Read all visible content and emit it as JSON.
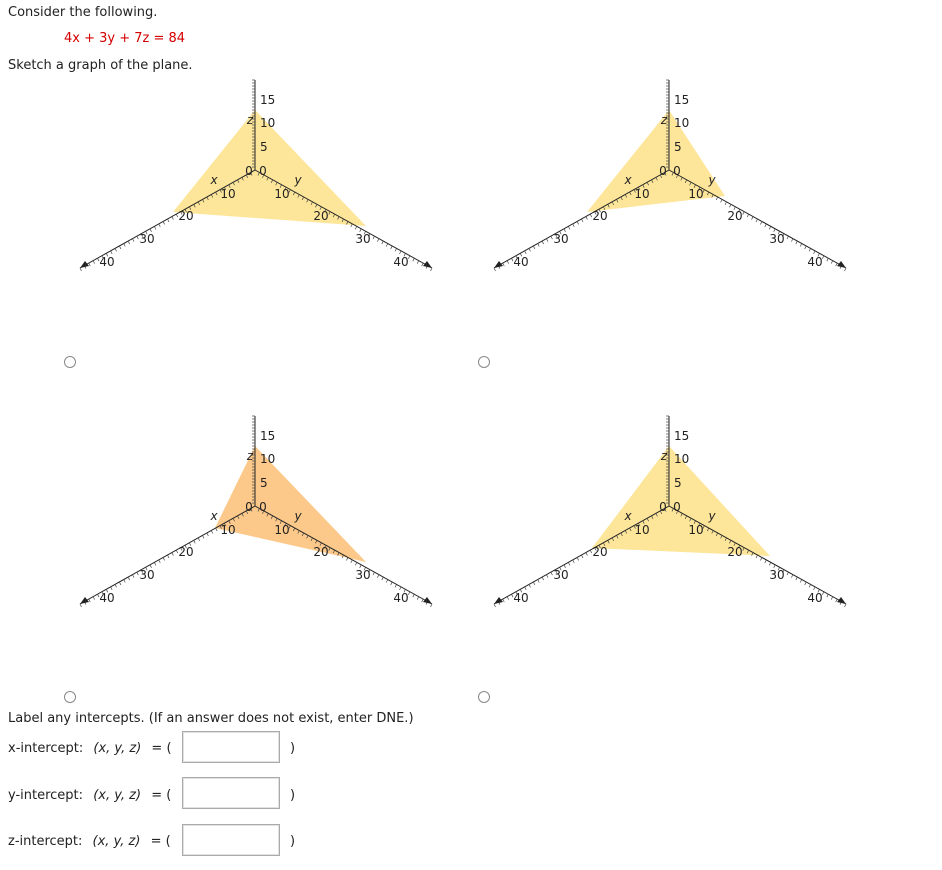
{
  "question": {
    "intro": "Consider the following.",
    "equation": "4x + 3y + 7z = 84",
    "instruction": "Sketch a graph of the plane."
  },
  "graphs": [
    {
      "id": "A",
      "fill": "#fde69a",
      "z_ticks": [
        "15",
        "10",
        "5"
      ],
      "origin_labels": [
        "0",
        "0"
      ],
      "x_ticks": [
        "10",
        "20",
        "30",
        "40"
      ],
      "y_ticks": [
        "10",
        "20",
        "30",
        "40"
      ],
      "axis_letters": {
        "x": "x",
        "y": "y",
        "z": "z"
      }
    },
    {
      "id": "B",
      "fill": "#fde69a",
      "z_ticks": [
        "15",
        "10",
        "5"
      ],
      "origin_labels": [
        "0",
        "0"
      ],
      "x_ticks": [
        "10",
        "20",
        "30",
        "40"
      ],
      "y_ticks": [
        "10",
        "20",
        "30",
        "40"
      ],
      "axis_letters": {
        "x": "x",
        "y": "y",
        "z": "z"
      }
    },
    {
      "id": "C",
      "fill": "#fcc98a",
      "z_ticks": [
        "15",
        "10",
        "5"
      ],
      "origin_labels": [
        "0",
        "0"
      ],
      "x_ticks": [
        "10",
        "20",
        "30",
        "40"
      ],
      "y_ticks": [
        "10",
        "20",
        "30",
        "40"
      ],
      "axis_letters": {
        "x": "x",
        "y": "y",
        "z": "z"
      }
    },
    {
      "id": "D",
      "fill": "#fde69a",
      "z_ticks": [
        "15",
        "10",
        "5"
      ],
      "origin_labels": [
        "0",
        "0"
      ],
      "x_ticks": [
        "10",
        "20",
        "30",
        "40"
      ],
      "y_ticks": [
        "10",
        "20",
        "30",
        "40"
      ],
      "axis_letters": {
        "x": "x",
        "y": "y",
        "z": "z"
      }
    }
  ],
  "intercepts": {
    "instruction": "Label any intercepts. (If an answer does not exist, enter DNE.)",
    "x_label": "x-intercept:",
    "y_label": "y-intercept:",
    "z_label": "z-intercept:",
    "coords": "(x, y, z)",
    "equals_open": "= (",
    "close": ")",
    "x_value": "",
    "y_value": "",
    "z_value": ""
  },
  "colors": {
    "equation": "#d40000",
    "plane_yellow": "#fde69a",
    "plane_orange": "#fcc98a"
  }
}
